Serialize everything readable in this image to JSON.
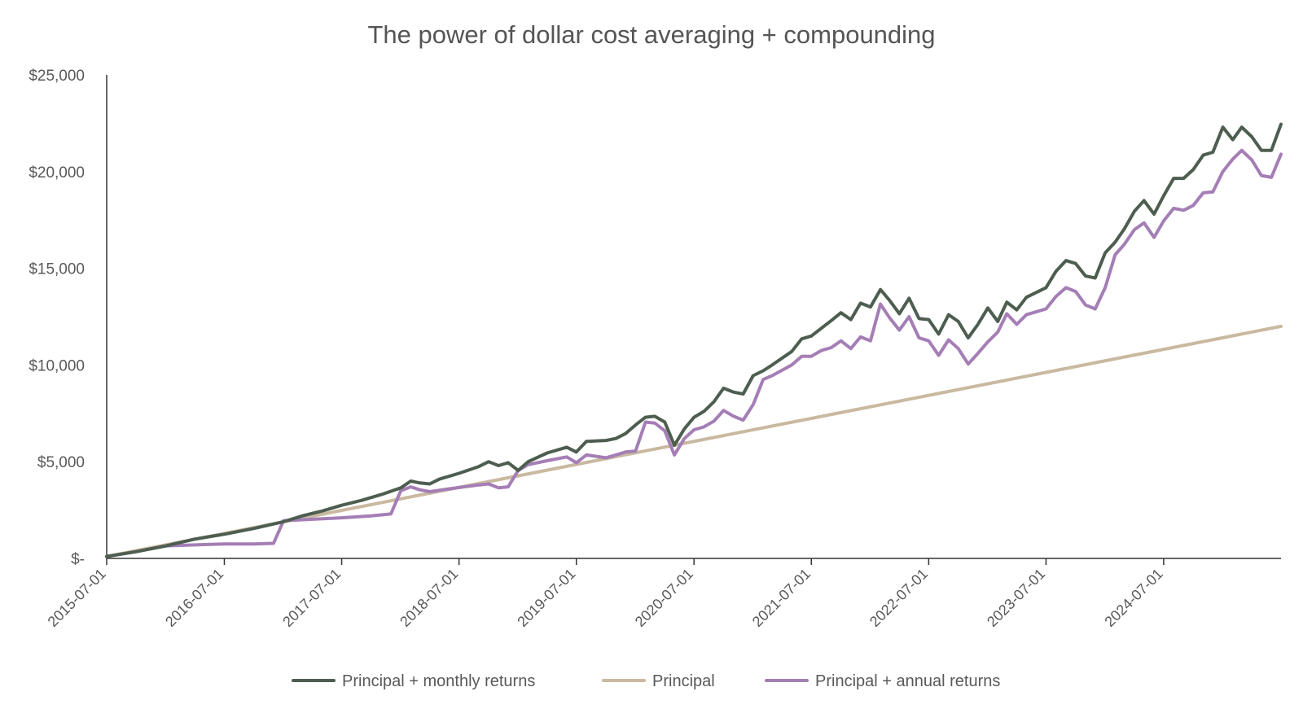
{
  "chart_data": {
    "type": "line",
    "title": "The power of dollar cost averaging + compounding",
    "xlabel": "",
    "ylabel": "",
    "x_tick_labels": [
      "2015-07-01",
      "2016-07-01",
      "2017-07-01",
      "2018-07-01",
      "2019-07-01",
      "2020-07-01",
      "2021-07-01",
      "2022-07-01",
      "2023-07-01",
      "2024-07-01"
    ],
    "y_tick_labels": [
      "$-",
      "$5,000",
      "$10,000",
      "$15,000",
      "$20,000",
      "$25,000"
    ],
    "ylim": [
      0,
      25000
    ],
    "grid": false,
    "legend_position": "bottom",
    "series": [
      {
        "name": "Principal + monthly returns",
        "color": "#4d5e50",
        "points": [
          [
            "2015-07-01",
            100
          ],
          [
            "2015-10-01",
            350
          ],
          [
            "2016-01-01",
            650
          ],
          [
            "2016-04-01",
            1000
          ],
          [
            "2016-07-01",
            1250
          ],
          [
            "2016-10-01",
            1550
          ],
          [
            "2017-01-01",
            1900
          ],
          [
            "2017-03-01",
            2200
          ],
          [
            "2017-05-01",
            2450
          ],
          [
            "2017-07-01",
            2750
          ],
          [
            "2017-09-01",
            3000
          ],
          [
            "2017-11-01",
            3300
          ],
          [
            "2018-01-01",
            3650
          ],
          [
            "2018-02-01",
            4000
          ],
          [
            "2018-03-01",
            3900
          ],
          [
            "2018-04-01",
            3850
          ],
          [
            "2018-05-01",
            4100
          ],
          [
            "2018-07-01",
            4400
          ],
          [
            "2018-09-01",
            4750
          ],
          [
            "2018-10-01",
            5000
          ],
          [
            "2018-11-01",
            4800
          ],
          [
            "2018-12-01",
            4950
          ],
          [
            "2019-01-01",
            4550
          ],
          [
            "2019-02-01",
            5000
          ],
          [
            "2019-04-01",
            5450
          ],
          [
            "2019-06-01",
            5750
          ],
          [
            "2019-07-01",
            5500
          ],
          [
            "2019-08-01",
            6050
          ],
          [
            "2019-10-01",
            6100
          ],
          [
            "2019-11-01",
            6200
          ],
          [
            "2019-12-01",
            6450
          ],
          [
            "2020-01-01",
            6900
          ],
          [
            "2020-02-01",
            7300
          ],
          [
            "2020-03-01",
            7350
          ],
          [
            "2020-04-01",
            7050
          ],
          [
            "2020-05-01",
            5850
          ],
          [
            "2020-06-01",
            6700
          ],
          [
            "2020-07-01",
            7300
          ],
          [
            "2020-08-01",
            7600
          ],
          [
            "2020-09-01",
            8100
          ],
          [
            "2020-10-01",
            8800
          ],
          [
            "2020-11-01",
            8600
          ],
          [
            "2020-12-01",
            8500
          ],
          [
            "2021-01-01",
            9450
          ],
          [
            "2021-02-01",
            9700
          ],
          [
            "2021-03-01",
            10000
          ],
          [
            "2021-05-01",
            10700
          ],
          [
            "2021-06-01",
            11350
          ],
          [
            "2021-07-01",
            11500
          ],
          [
            "2021-08-01",
            11900
          ],
          [
            "2021-09-01",
            12300
          ],
          [
            "2021-10-01",
            12700
          ],
          [
            "2021-11-01",
            12350
          ],
          [
            "2021-12-01",
            13200
          ],
          [
            "2022-01-01",
            13000
          ],
          [
            "2022-02-01",
            13900
          ],
          [
            "2022-03-01",
            13350
          ],
          [
            "2022-04-01",
            12650
          ],
          [
            "2022-05-01",
            13450
          ],
          [
            "2022-06-01",
            12400
          ],
          [
            "2022-07-01",
            12350
          ],
          [
            "2022-08-01",
            11600
          ],
          [
            "2022-09-01",
            12600
          ],
          [
            "2022-10-01",
            12250
          ],
          [
            "2022-11-01",
            11400
          ],
          [
            "2022-12-01",
            12100
          ],
          [
            "2023-01-01",
            12950
          ],
          [
            "2023-02-01",
            12250
          ],
          [
            "2023-03-01",
            13250
          ],
          [
            "2023-04-01",
            12850
          ],
          [
            "2023-05-01",
            13500
          ],
          [
            "2023-07-01",
            14000
          ],
          [
            "2023-08-01",
            14850
          ],
          [
            "2023-09-01",
            15400
          ],
          [
            "2023-10-01",
            15250
          ],
          [
            "2023-11-01",
            14600
          ],
          [
            "2023-12-01",
            14500
          ],
          [
            "2024-01-01",
            15800
          ],
          [
            "2024-02-01",
            16350
          ],
          [
            "2024-03-01",
            17050
          ],
          [
            "2024-04-01",
            17950
          ],
          [
            "2024-05-01",
            18500
          ],
          [
            "2024-06-01",
            17800
          ],
          [
            "2024-07-01",
            18750
          ],
          [
            "2024-08-01",
            19650
          ],
          [
            "2024-09-01",
            19650
          ],
          [
            "2024-10-01",
            20100
          ],
          [
            "2024-11-01",
            20850
          ],
          [
            "2024-12-01",
            21000
          ],
          [
            "2025-01-01",
            22300
          ],
          [
            "2025-02-01",
            21650
          ],
          [
            "2025-03-01",
            22300
          ],
          [
            "2025-04-01",
            21800
          ],
          [
            "2025-05-01",
            21100
          ],
          [
            "2025-06-01",
            21100
          ],
          [
            "2025-07-01",
            22450
          ]
        ]
      },
      {
        "name": "Principal",
        "color": "#c9b9a0",
        "points": [
          [
            "2015-07-01",
            100
          ],
          [
            "2025-07-01",
            12000
          ]
        ]
      },
      {
        "name": "Principal + annual returns",
        "color": "#a47eb5",
        "points": [
          [
            "2015-07-01",
            100
          ],
          [
            "2015-10-01",
            350
          ],
          [
            "2016-01-01",
            650
          ],
          [
            "2016-04-01",
            700
          ],
          [
            "2016-07-01",
            750
          ],
          [
            "2016-10-01",
            750
          ],
          [
            "2016-12-01",
            780
          ],
          [
            "2017-01-01",
            1950
          ],
          [
            "2017-03-01",
            2000
          ],
          [
            "2017-07-01",
            2100
          ],
          [
            "2017-10-01",
            2200
          ],
          [
            "2017-12-01",
            2300
          ],
          [
            "2018-01-01",
            3500
          ],
          [
            "2018-02-01",
            3700
          ],
          [
            "2018-03-01",
            3550
          ],
          [
            "2018-04-01",
            3450
          ],
          [
            "2018-06-01",
            3600
          ],
          [
            "2018-09-01",
            3800
          ],
          [
            "2018-10-01",
            3850
          ],
          [
            "2018-11-01",
            3650
          ],
          [
            "2018-12-01",
            3700
          ],
          [
            "2019-01-01",
            4550
          ],
          [
            "2019-02-01",
            4850
          ],
          [
            "2019-04-01",
            5050
          ],
          [
            "2019-06-01",
            5250
          ],
          [
            "2019-07-01",
            4950
          ],
          [
            "2019-08-01",
            5350
          ],
          [
            "2019-10-01",
            5200
          ],
          [
            "2019-11-01",
            5350
          ],
          [
            "2019-12-01",
            5500
          ],
          [
            "2020-01-01",
            5550
          ],
          [
            "2020-02-01",
            7050
          ],
          [
            "2020-03-01",
            7000
          ],
          [
            "2020-04-01",
            6600
          ],
          [
            "2020-05-01",
            5350
          ],
          [
            "2020-06-01",
            6200
          ],
          [
            "2020-07-01",
            6650
          ],
          [
            "2020-08-01",
            6800
          ],
          [
            "2020-09-01",
            7100
          ],
          [
            "2020-10-01",
            7650
          ],
          [
            "2020-11-01",
            7350
          ],
          [
            "2020-12-01",
            7150
          ],
          [
            "2021-01-01",
            7950
          ],
          [
            "2021-02-01",
            9250
          ],
          [
            "2021-03-01",
            9450
          ],
          [
            "2021-05-01",
            10000
          ],
          [
            "2021-06-01",
            10450
          ],
          [
            "2021-07-01",
            10450
          ],
          [
            "2021-08-01",
            10750
          ],
          [
            "2021-09-01",
            10900
          ],
          [
            "2021-10-01",
            11250
          ],
          [
            "2021-11-01",
            10850
          ],
          [
            "2021-12-01",
            11450
          ],
          [
            "2022-01-01",
            11250
          ],
          [
            "2022-02-01",
            13150
          ],
          [
            "2022-03-01",
            12450
          ],
          [
            "2022-04-01",
            11800
          ],
          [
            "2022-05-01",
            12500
          ],
          [
            "2022-06-01",
            11400
          ],
          [
            "2022-07-01",
            11250
          ],
          [
            "2022-08-01",
            10500
          ],
          [
            "2022-09-01",
            11300
          ],
          [
            "2022-10-01",
            10850
          ],
          [
            "2022-11-01",
            10050
          ],
          [
            "2022-12-01",
            10600
          ],
          [
            "2023-01-01",
            11200
          ],
          [
            "2023-02-01",
            11700
          ],
          [
            "2023-03-01",
            12650
          ],
          [
            "2023-04-01",
            12100
          ],
          [
            "2023-05-01",
            12600
          ],
          [
            "2023-07-01",
            12900
          ],
          [
            "2023-08-01",
            13550
          ],
          [
            "2023-09-01",
            14000
          ],
          [
            "2023-10-01",
            13800
          ],
          [
            "2023-11-01",
            13100
          ],
          [
            "2023-12-01",
            12900
          ],
          [
            "2024-01-01",
            14000
          ],
          [
            "2024-02-01",
            15700
          ],
          [
            "2024-03-01",
            16250
          ],
          [
            "2024-04-01",
            17000
          ],
          [
            "2024-05-01",
            17350
          ],
          [
            "2024-06-01",
            16600
          ],
          [
            "2024-07-01",
            17450
          ],
          [
            "2024-08-01",
            18100
          ],
          [
            "2024-09-01",
            18000
          ],
          [
            "2024-10-01",
            18250
          ],
          [
            "2024-11-01",
            18900
          ],
          [
            "2024-12-01",
            18950
          ],
          [
            "2025-01-01",
            20000
          ],
          [
            "2025-02-01",
            20650
          ],
          [
            "2025-03-01",
            21100
          ],
          [
            "2025-04-01",
            20600
          ],
          [
            "2025-05-01",
            19800
          ],
          [
            "2025-06-01",
            19700
          ],
          [
            "2025-07-01",
            20900
          ]
        ]
      }
    ]
  }
}
